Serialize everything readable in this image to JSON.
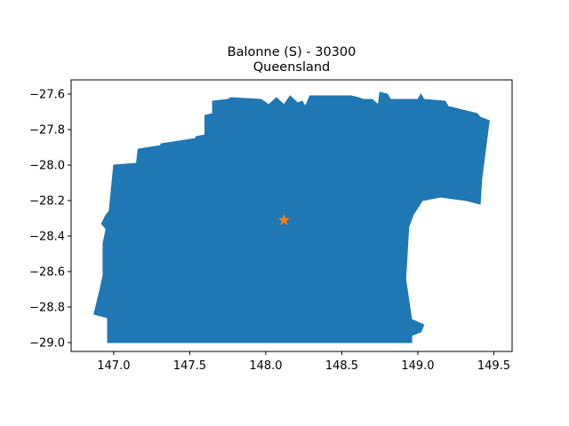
{
  "figure": {
    "title_line1": "Balonne (S) - 30300",
    "title_line2": "Queensland"
  },
  "chart_data": {
    "type": "map",
    "title": "Balonne (S) - 30300\nQueensland",
    "xlim": [
      146.72,
      149.62
    ],
    "ylim": [
      -29.05,
      -27.52
    ],
    "x_ticks": [
      147.0,
      147.5,
      148.0,
      148.5,
      149.0,
      149.5
    ],
    "x_tick_labels": [
      "147.0",
      "147.5",
      "148.0",
      "148.5",
      "149.0",
      "149.5"
    ],
    "y_ticks": [
      -27.6,
      -27.8,
      -28.0,
      -28.2,
      -28.4,
      -28.6,
      -28.8,
      -29.0
    ],
    "y_tick_labels": [
      "−27.6",
      "−27.8",
      "−28.0",
      "−28.2",
      "−28.4",
      "−28.6",
      "−28.8",
      "−29.0"
    ],
    "region": {
      "name": "Balonne (S)",
      "color": "#1f77b4",
      "outline": [
        [
          146.96,
          -29.0
        ],
        [
          146.96,
          -28.86
        ],
        [
          146.87,
          -28.84
        ],
        [
          146.91,
          -28.7
        ],
        [
          146.93,
          -28.62
        ],
        [
          146.93,
          -28.44
        ],
        [
          146.95,
          -28.36
        ],
        [
          146.92,
          -28.33
        ],
        [
          146.95,
          -28.28
        ],
        [
          146.97,
          -28.26
        ],
        [
          147.0,
          -28.0
        ],
        [
          147.15,
          -27.99
        ],
        [
          147.16,
          -27.91
        ],
        [
          147.31,
          -27.89
        ],
        [
          147.31,
          -27.88
        ],
        [
          147.54,
          -27.85
        ],
        [
          147.54,
          -27.84
        ],
        [
          147.6,
          -27.83
        ],
        [
          147.6,
          -27.72
        ],
        [
          147.65,
          -27.71
        ],
        [
          147.65,
          -27.64
        ],
        [
          147.75,
          -27.63
        ],
        [
          147.77,
          -27.62
        ],
        [
          147.97,
          -27.63
        ],
        [
          148.02,
          -27.66
        ],
        [
          148.07,
          -27.62
        ],
        [
          148.12,
          -27.66
        ],
        [
          148.16,
          -27.61
        ],
        [
          148.21,
          -27.65
        ],
        [
          148.24,
          -27.64
        ],
        [
          148.26,
          -27.67
        ],
        [
          148.29,
          -27.61
        ],
        [
          148.56,
          -27.61
        ],
        [
          148.61,
          -27.62
        ],
        [
          148.64,
          -27.63
        ],
        [
          148.7,
          -27.63
        ],
        [
          148.74,
          -27.66
        ],
        [
          148.75,
          -27.59
        ],
        [
          148.8,
          -27.6
        ],
        [
          148.82,
          -27.63
        ],
        [
          149.0,
          -27.63
        ],
        [
          149.02,
          -27.6
        ],
        [
          149.04,
          -27.63
        ],
        [
          149.18,
          -27.64
        ],
        [
          149.2,
          -27.67
        ],
        [
          149.39,
          -27.71
        ],
        [
          149.41,
          -27.73
        ],
        [
          149.47,
          -27.75
        ],
        [
          149.42,
          -28.08
        ],
        [
          149.41,
          -28.22
        ],
        [
          149.32,
          -28.2
        ],
        [
          149.15,
          -28.18
        ],
        [
          149.03,
          -28.2
        ],
        [
          148.97,
          -28.28
        ],
        [
          148.94,
          -28.35
        ],
        [
          148.93,
          -28.5
        ],
        [
          148.92,
          -28.64
        ],
        [
          148.94,
          -28.76
        ],
        [
          148.96,
          -28.87
        ],
        [
          149.04,
          -28.9
        ],
        [
          149.02,
          -28.94
        ],
        [
          148.96,
          -28.96
        ],
        [
          148.96,
          -29.0
        ]
      ]
    },
    "marker": {
      "name": "centroid",
      "symbol": "star",
      "color": "#ff7f0e",
      "x": 148.12,
      "y": -28.31
    }
  }
}
